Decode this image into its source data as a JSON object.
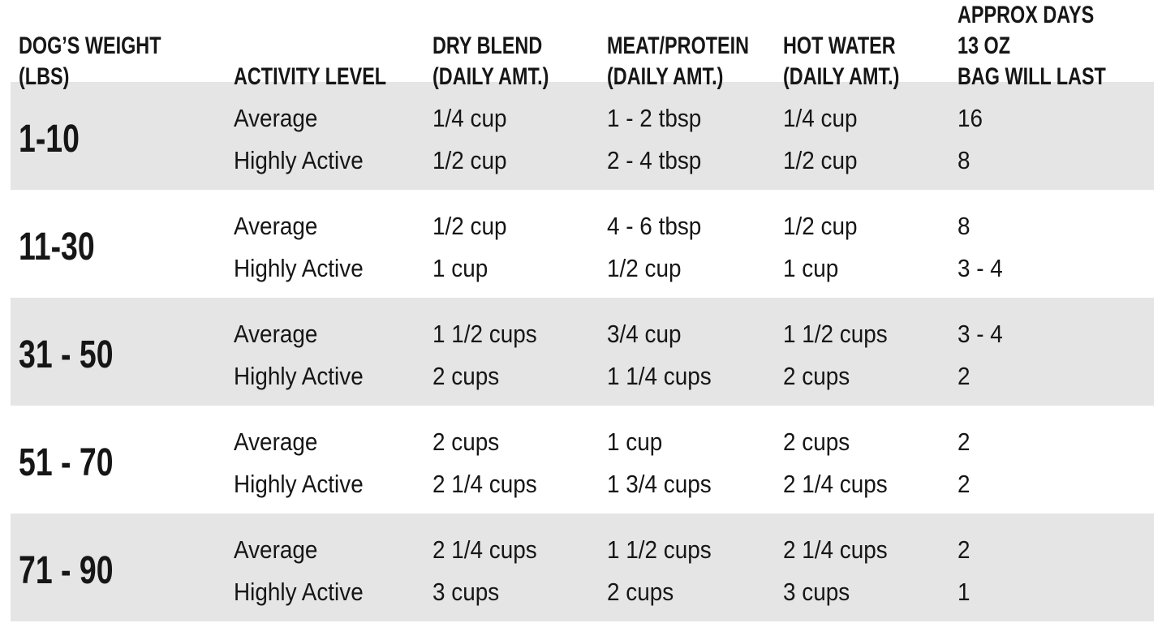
{
  "colors": {
    "band_gray": "#e5e5e5",
    "background": "#ffffff",
    "text": "#161616"
  },
  "table": {
    "headers": [
      "DOG’S WEIGHT (LBS)",
      "ACTIVITY LEVEL",
      "DRY BLEND\n(DAILY AMT.)",
      "MEAT/PROTEIN\n(DAILY AMT.)",
      "HOT WATER\n(DAILY AMT.)",
      "APPROX DAYS 13 OZ\nBAG WILL LAST"
    ],
    "rows": [
      {
        "weight": "1-10",
        "average": {
          "activity": "Average",
          "dry": "1/4 cup",
          "meat": "1 - 2 tbsp",
          "water": "1/4 cup",
          "days": "16"
        },
        "highly_active": {
          "activity": "Highly Active",
          "dry": "1/2 cup",
          "meat": "2 - 4 tbsp",
          "water": "1/2 cup",
          "days": "8"
        }
      },
      {
        "weight": "11-30",
        "average": {
          "activity": "Average",
          "dry": "1/2 cup",
          "meat": "4 - 6 tbsp",
          "water": "1/2 cup",
          "days": "8"
        },
        "highly_active": {
          "activity": "Highly Active",
          "dry": "1 cup",
          "meat": "1/2 cup",
          "water": "1 cup",
          "days": "3 - 4"
        }
      },
      {
        "weight": "31 - 50",
        "average": {
          "activity": "Average",
          "dry": "1 1/2 cups",
          "meat": "3/4 cup",
          "water": "1 1/2 cups",
          "days": "3 - 4"
        },
        "highly_active": {
          "activity": "Highly Active",
          "dry": "2 cups",
          "meat": "1 1/4 cups",
          "water": "2 cups",
          "days": "2"
        }
      },
      {
        "weight": "51 - 70",
        "average": {
          "activity": "Average",
          "dry": "2 cups",
          "meat": "1 cup",
          "water": "2 cups",
          "days": "2"
        },
        "highly_active": {
          "activity": "Highly Active",
          "dry": "2 1/4 cups",
          "meat": "1 3/4 cups",
          "water": "2 1/4 cups",
          "days": "2"
        }
      },
      {
        "weight": "71 - 90",
        "average": {
          "activity": "Average",
          "dry": "2 1/4 cups",
          "meat": "1 1/2 cups",
          "water": "2 1/4 cups",
          "days": "2"
        },
        "highly_active": {
          "activity": "Highly Active",
          "dry": "3 cups",
          "meat": "2 cups",
          "water": "3 cups",
          "days": "1"
        }
      }
    ]
  }
}
